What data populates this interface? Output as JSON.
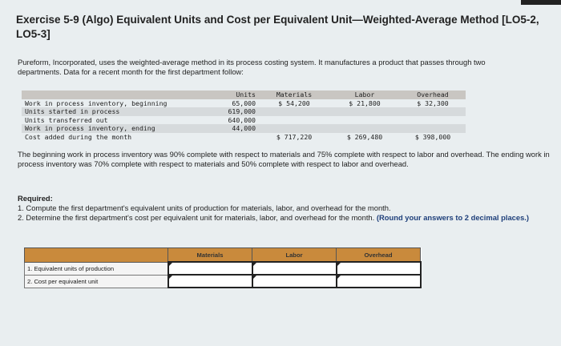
{
  "title": "Exercise 5-9 (Algo) Equivalent Units and Cost per Equivalent Unit—Weighted-Average Method [LO5-2, LO5-3]",
  "intro": "Pureform, Incorporated, uses the weighted-average method in its process costing system. It manufactures a product that passes through two departments. Data for a recent month for the first department follow:",
  "data_table": {
    "headers": [
      "",
      "Units",
      "Materials",
      "Labor",
      "Overhead"
    ],
    "rows": [
      [
        "Work in process inventory, beginning",
        "65,000",
        "$ 54,200",
        "$ 21,800",
        "$ 32,300"
      ],
      [
        "Units started in process",
        "619,000",
        "",
        "",
        ""
      ],
      [
        "Units transferred out",
        "640,000",
        "",
        "",
        ""
      ],
      [
        "Work in process inventory, ending",
        "44,000",
        "",
        "",
        ""
      ],
      [
        "Cost added during the month",
        "",
        "$ 717,220",
        "$ 269,480",
        "$ 398,000"
      ]
    ]
  },
  "completion_text": "The beginning work in process inventory was 90% complete with respect to materials and 75% complete with respect to labor and overhead. The ending work in process inventory was 70% complete with respect to materials and 50% complete with respect to labor and overhead.",
  "required": {
    "heading": "Required:",
    "item1": "1. Compute the first department's equivalent units of production for materials, labor, and overhead for the month.",
    "item2": "2. Determine the first department's cost per equivalent unit for materials, labor, and overhead for the month.",
    "item2_note": "(Round your answers to 2 decimal places.)"
  },
  "answer_table": {
    "headers": [
      "",
      "Materials",
      "Labor",
      "Overhead"
    ],
    "rows": [
      "1. Equivalent units of production",
      "2. Cost per equivalent unit"
    ],
    "accent": "#c98a3c"
  }
}
